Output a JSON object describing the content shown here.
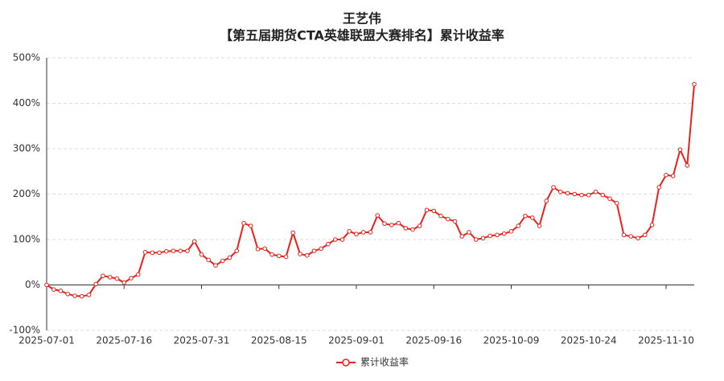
{
  "chart_data": {
    "type": "line",
    "title": "王艺伟",
    "subtitle": "【第五届期货CTA英雄联盟大赛排名】累计收益率",
    "categories": [
      "2025-07-01",
      null,
      null,
      null,
      null,
      null,
      null,
      null,
      null,
      null,
      null,
      "2025-07-16",
      null,
      null,
      null,
      null,
      null,
      null,
      null,
      null,
      null,
      null,
      "2025-07-31",
      null,
      null,
      null,
      null,
      null,
      null,
      null,
      null,
      null,
      null,
      "2025-08-15",
      null,
      null,
      null,
      null,
      null,
      null,
      null,
      null,
      null,
      null,
      "2025-09-01",
      null,
      null,
      null,
      null,
      null,
      null,
      null,
      null,
      null,
      null,
      "2025-09-16",
      null,
      null,
      null,
      null,
      null,
      null,
      null,
      null,
      null,
      null,
      "2025-10-09",
      null,
      null,
      null,
      null,
      null,
      null,
      null,
      null,
      null,
      null,
      "2025-10-24",
      null,
      null,
      null,
      null,
      null,
      null,
      null,
      null,
      null,
      null,
      "2025-11-10",
      null,
      null,
      null,
      null
    ],
    "series": [
      {
        "name": "累计收益率",
        "color": "#e8221b",
        "values": [
          0,
          -10,
          -13,
          -20,
          -24,
          -25,
          -22,
          2,
          20,
          17,
          14,
          5,
          15,
          23,
          72,
          71,
          71,
          74,
          75,
          75,
          75,
          96,
          67,
          55,
          43,
          53,
          60,
          75,
          136,
          130,
          79,
          80,
          67,
          64,
          62,
          115,
          68,
          65,
          75,
          80,
          90,
          100,
          100,
          118,
          112,
          116,
          116,
          153,
          135,
          132,
          136,
          125,
          122,
          130,
          165,
          163,
          152,
          145,
          140,
          107,
          116,
          100,
          103,
          108,
          110,
          113,
          118,
          130,
          152,
          148,
          130,
          185,
          215,
          205,
          202,
          200,
          198,
          198,
          205,
          198,
          190,
          180,
          110,
          107,
          103,
          110,
          132,
          215,
          242,
          240,
          298,
          263,
          442
        ]
      }
    ],
    "ylim": [
      -100,
      500
    ],
    "yticks": [
      {
        "value": -100,
        "label": "-100%"
      },
      {
        "value": 0,
        "label": "0%"
      },
      {
        "value": 100,
        "label": "100%"
      },
      {
        "value": 200,
        "label": "200%"
      },
      {
        "value": 300,
        "label": "300%"
      },
      {
        "value": 400,
        "label": "400%"
      },
      {
        "value": 500,
        "label": "500%"
      }
    ],
    "grid": true,
    "legend": "bottom"
  }
}
